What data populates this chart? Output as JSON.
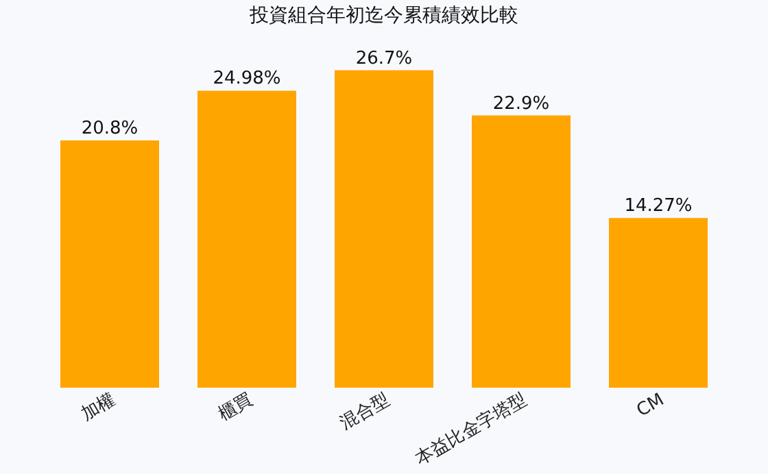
{
  "chart_data": {
    "type": "bar",
    "title": "投資組合年初迄今累積績效比較",
    "categories": [
      "加權",
      "櫃買",
      "混合型",
      "本益比金字塔型",
      "CM"
    ],
    "values": [
      20.8,
      24.98,
      26.7,
      22.9,
      14.27
    ],
    "value_labels": [
      "20.8%",
      "24.98%",
      "26.7%",
      "22.9%",
      "14.27%"
    ],
    "color": "#ffa500",
    "tick_labels": "x",
    "grid": false
  }
}
